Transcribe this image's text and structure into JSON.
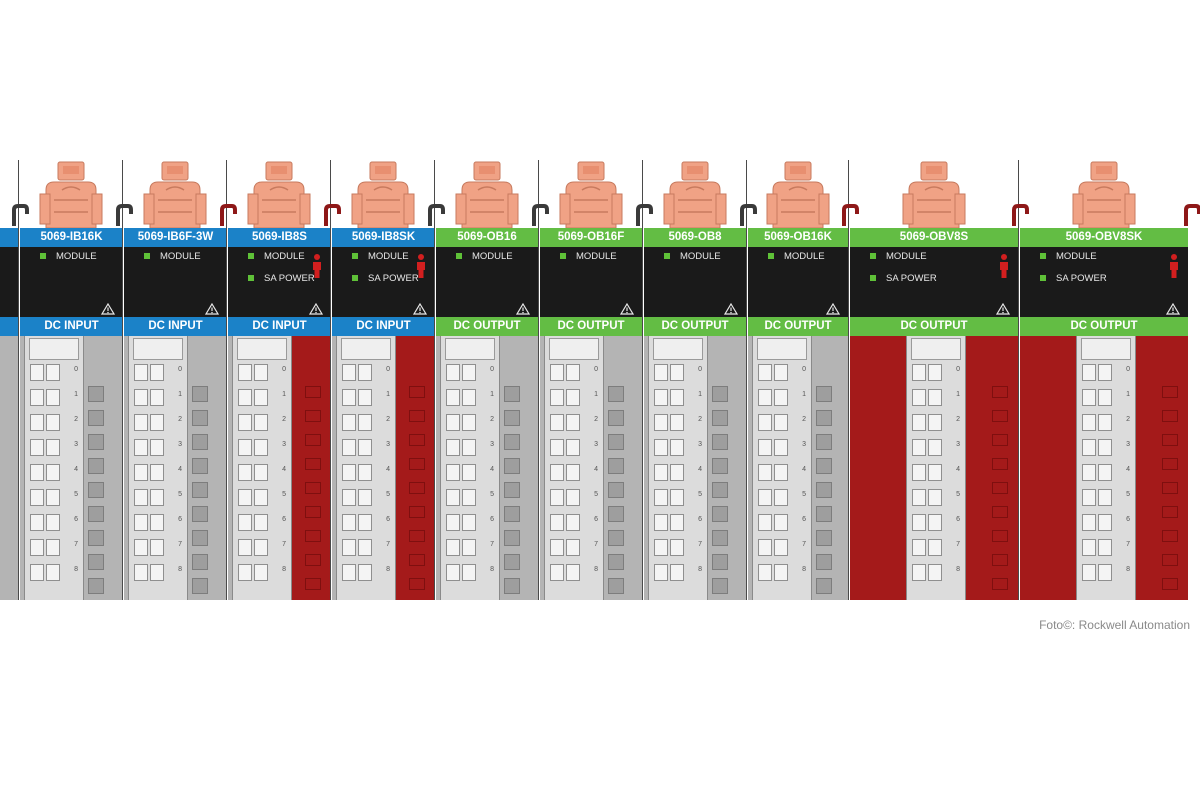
{
  "modules": [
    {
      "part": "5069-IB16K",
      "leds": [
        "MODULE"
      ],
      "sa": false,
      "type": "DC INPUT",
      "io": "input",
      "body": "grey"
    },
    {
      "part": "5069-IB6F-3W",
      "leds": [
        "MODULE"
      ],
      "sa": false,
      "type": "DC INPUT",
      "io": "input",
      "body": "grey"
    },
    {
      "part": "5069-IB8S",
      "leds": [
        "MODULE",
        "SA POWER"
      ],
      "sa": true,
      "type": "DC INPUT",
      "io": "input",
      "body": "grey-red"
    },
    {
      "part": "5069-IB8SK",
      "leds": [
        "MODULE",
        "SA POWER"
      ],
      "sa": true,
      "type": "DC INPUT",
      "io": "input",
      "body": "grey-red"
    },
    {
      "part": "5069-OB16",
      "leds": [
        "MODULE"
      ],
      "sa": false,
      "type": "DC OUTPUT",
      "io": "output",
      "body": "grey"
    },
    {
      "part": "5069-OB16F",
      "leds": [
        "MODULE"
      ],
      "sa": false,
      "type": "DC OUTPUT",
      "io": "output",
      "body": "grey"
    },
    {
      "part": "5069-OB8",
      "leds": [
        "MODULE"
      ],
      "sa": false,
      "type": "DC OUTPUT",
      "io": "output",
      "body": "grey"
    },
    {
      "part": "5069-OB16K",
      "leds": [
        "MODULE"
      ],
      "sa": false,
      "type": "DC OUTPUT",
      "io": "output",
      "body": "grey"
    },
    {
      "part": "5069-OBV8S",
      "leds": [
        "MODULE",
        "SA POWER"
      ],
      "sa": true,
      "type": "DC OUTPUT",
      "io": "output",
      "body": "red"
    },
    {
      "part": "5069-OBV8SK",
      "leds": [
        "MODULE",
        "SA POWER"
      ],
      "sa": true,
      "type": "DC OUTPUT",
      "io": "output",
      "body": "red"
    }
  ],
  "terminal_numbers": [
    "0",
    "1",
    "2",
    "3",
    "4",
    "5",
    "6",
    "7",
    "8"
  ],
  "credit": "Foto©: Rockwell Automation",
  "colors": {
    "input_header": "#1b82c8",
    "output_header": "#63bd44",
    "status_led": "#5fc138",
    "connector": "#f0a285",
    "safety_red": "#a41a1a",
    "housing_grey": "#b4b4b4"
  },
  "icons": [
    "connector-plug-icon",
    "warning-triangle-icon",
    "safety-person-icon",
    "status-led-icon"
  ]
}
